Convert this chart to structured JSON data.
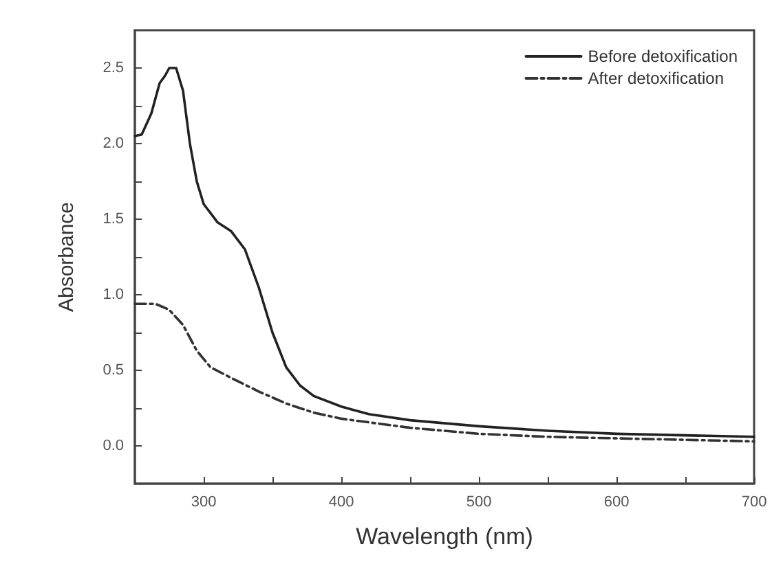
{
  "chart_data": {
    "type": "line",
    "xlabel": "Wavelength (nm)",
    "ylabel": "Absorbance",
    "xlim": [
      250,
      700
    ],
    "ylim": [
      -0.25,
      2.75
    ],
    "xticks": [
      300,
      {
        "value": 350,
        "label": null
      },
      400,
      {
        "value": 450,
        "label": null
      },
      500,
      {
        "value": 550,
        "label": null
      },
      600,
      {
        "value": 650,
        "label": null
      },
      700
    ],
    "yticks": [
      {
        "value": 0,
        "label": "0.0"
      },
      {
        "value": 0.25,
        "label": null
      },
      0.5,
      {
        "value": 0.75,
        "label": null
      },
      {
        "value": 1,
        "label": "1.0"
      },
      {
        "value": 1.25,
        "label": null
      },
      1.5,
      {
        "value": 1.75,
        "label": null
      },
      {
        "value": 2,
        "label": "2.0"
      },
      {
        "value": 2.25,
        "label": null
      },
      2.5
    ],
    "grid": false,
    "legend": "top right",
    "marker": "none",
    "series": [
      {
        "name": "Before detoxification",
        "color": "#222222",
        "line_style": "solid",
        "x": [
          250,
          255,
          262,
          268,
          272,
          275,
          280,
          285,
          290,
          295,
          300,
          310,
          320,
          330,
          340,
          350,
          360,
          370,
          380,
          400,
          420,
          450,
          500,
          550,
          600,
          650,
          700
        ],
        "values": [
          2.05,
          2.06,
          2.2,
          2.4,
          2.45,
          2.5,
          2.5,
          2.35,
          2.0,
          1.75,
          1.6,
          1.48,
          1.42,
          1.3,
          1.05,
          0.75,
          0.52,
          0.4,
          0.33,
          0.26,
          0.21,
          0.17,
          0.13,
          0.1,
          0.08,
          0.07,
          0.06
        ]
      },
      {
        "name": "After detoxification",
        "color": "#333333",
        "line_style": "dashed",
        "x": [
          250,
          265,
          275,
          285,
          295,
          305,
          320,
          340,
          360,
          380,
          400,
          450,
          500,
          550,
          600,
          650,
          700
        ],
        "values": [
          0.94,
          0.94,
          0.9,
          0.8,
          0.63,
          0.52,
          0.45,
          0.36,
          0.28,
          0.22,
          0.18,
          0.12,
          0.08,
          0.06,
          0.05,
          0.04,
          0.03
        ]
      }
    ]
  }
}
